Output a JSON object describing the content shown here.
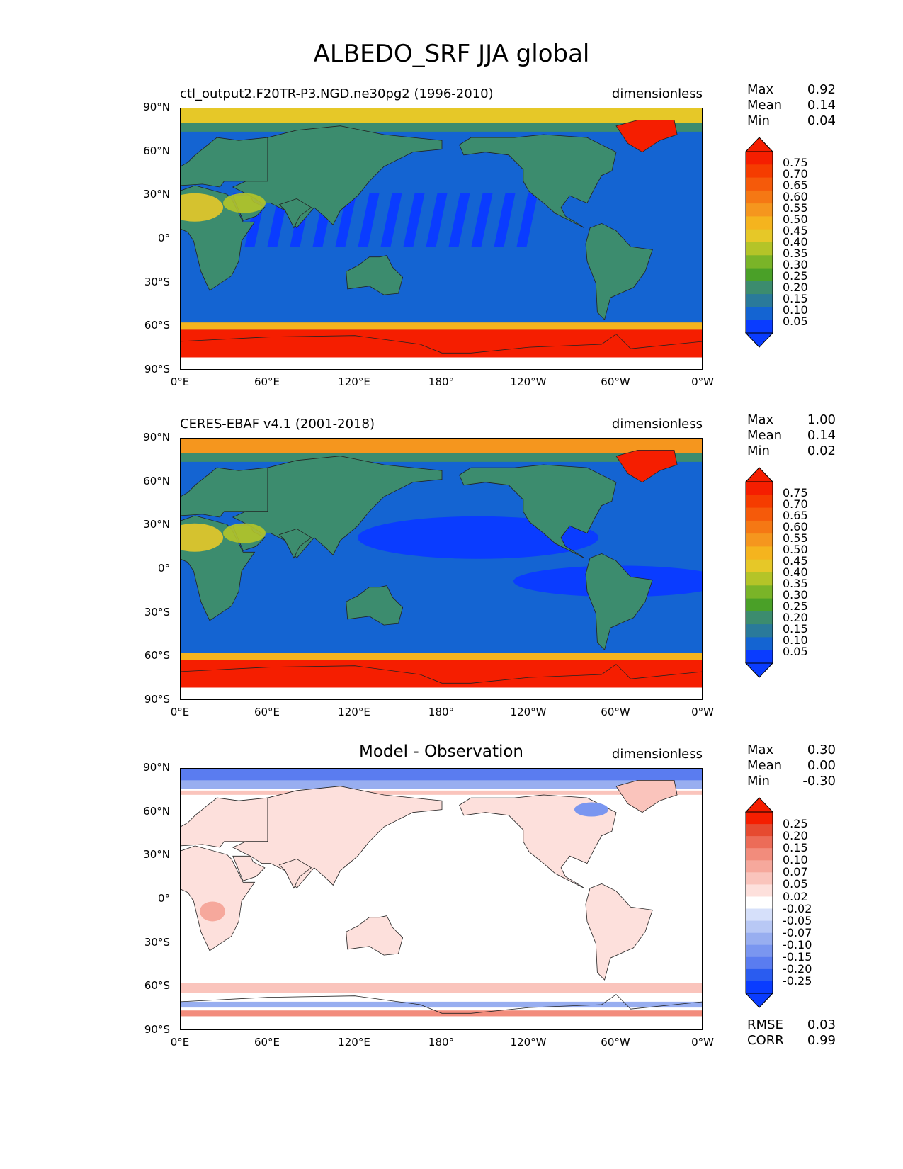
{
  "title": "ALBEDO_SRF JJA global",
  "lat_ticks": [
    "90°N",
    "60°N",
    "30°N",
    "0°",
    "30°S",
    "60°S",
    "90°S"
  ],
  "lon_ticks": [
    "0°E",
    "60°E",
    "120°E",
    "180°",
    "120°W",
    "60°W",
    "0°W"
  ],
  "colors": {
    "sequential": [
      "#0a3cff",
      "#1464d2",
      "#2a7a9a",
      "#3c8c6e",
      "#4aa028",
      "#7ab428",
      "#b4c428",
      "#e6c828",
      "#f5b41e",
      "#f5961e",
      "#f57814",
      "#f55a0a",
      "#f53c00",
      "#f51e00"
    ],
    "diverging": [
      "#0a3cff",
      "#2a5cf0",
      "#5a7cf0",
      "#7a96f0",
      "#98aef0",
      "#b8c8f5",
      "#d6e0fa",
      "#ffffff",
      "#fde0dc",
      "#fac4bc",
      "#f6a89c",
      "#f28c7c",
      "#ec6c58",
      "#e64a30",
      "#f51e00"
    ]
  },
  "panels": [
    {
      "left_title": "ctl_output2.F20TR-P3.NGD.ne30pg2 (1996-2010)",
      "center_title": "",
      "units": "dimensionless",
      "stats": [
        {
          "label": "Max",
          "value": "0.92"
        },
        {
          "label": "Mean",
          "value": "0.14"
        },
        {
          "label": "Min",
          "value": "0.04"
        }
      ],
      "colorbar_ticks": [
        "0.75",
        "0.70",
        "0.65",
        "0.60",
        "0.55",
        "0.50",
        "0.45",
        "0.40",
        "0.35",
        "0.30",
        "0.25",
        "0.20",
        "0.15",
        "0.10",
        "0.05"
      ]
    },
    {
      "left_title": "CERES-EBAF v4.1 (2001-2018)",
      "center_title": "",
      "units": "dimensionless",
      "stats": [
        {
          "label": "Max",
          "value": "1.00"
        },
        {
          "label": "Mean",
          "value": "0.14"
        },
        {
          "label": "Min",
          "value": "0.02"
        }
      ],
      "colorbar_ticks": [
        "0.75",
        "0.70",
        "0.65",
        "0.60",
        "0.55",
        "0.50",
        "0.45",
        "0.40",
        "0.35",
        "0.30",
        "0.25",
        "0.20",
        "0.15",
        "0.10",
        "0.05"
      ]
    },
    {
      "left_title": "",
      "center_title": "Model - Observation",
      "units": "dimensionless",
      "stats": [
        {
          "label": "Max",
          "value": "0.30"
        },
        {
          "label": "Mean",
          "value": "0.00"
        },
        {
          "label": "Min",
          "value": "-0.30"
        }
      ],
      "colorbar_ticks": [
        "0.25",
        "0.20",
        "0.15",
        "0.10",
        "0.07",
        "0.05",
        "0.02",
        "-0.02",
        "-0.05",
        "-0.07",
        "-0.10",
        "-0.15",
        "-0.20",
        "-0.25"
      ],
      "metrics": [
        {
          "label": "RMSE",
          "value": "0.03"
        },
        {
          "label": "CORR",
          "value": "0.99"
        }
      ]
    }
  ]
}
